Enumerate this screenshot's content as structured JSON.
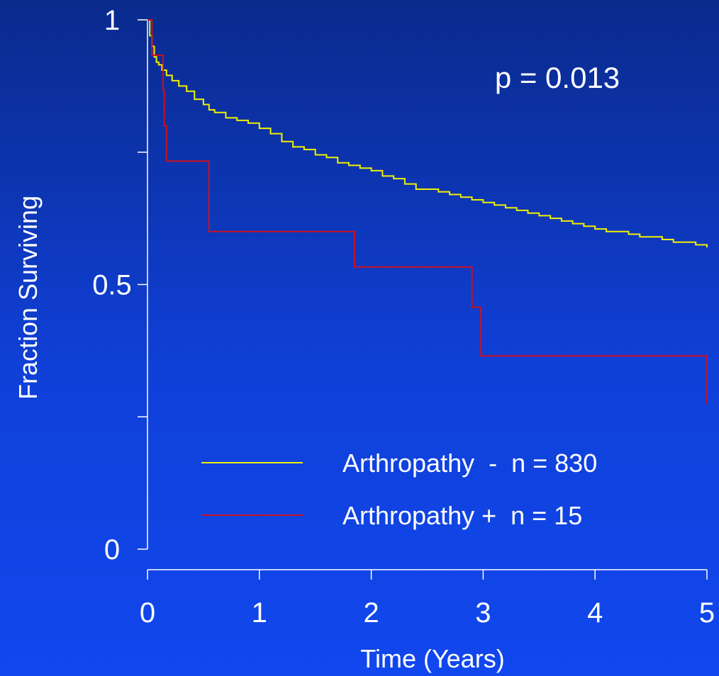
{
  "chart_data": {
    "type": "line",
    "subtype": "kaplan-meier-step",
    "xlabel": "Time (Years)",
    "ylabel": "Fraction Surviving",
    "xlim": [
      0,
      5
    ],
    "ylim": [
      0,
      1
    ],
    "x_ticks": [
      0,
      1,
      2,
      3,
      4,
      5
    ],
    "y_ticks": [
      0,
      0.25,
      0.5,
      0.75,
      1
    ],
    "y_tick_labels": [
      "0",
      "",
      "0.5",
      "",
      "1"
    ],
    "annotation": "p = 0.013",
    "grid": false,
    "legend_position": "bottom-center",
    "series": [
      {
        "name": "Arthropathy  -  n = 830",
        "color": "#f0f000",
        "x": [
          0,
          0.02,
          0.04,
          0.06,
          0.08,
          0.1,
          0.13,
          0.17,
          0.22,
          0.28,
          0.35,
          0.42,
          0.5,
          0.55,
          0.6,
          0.7,
          0.8,
          0.9,
          1.0,
          1.1,
          1.2,
          1.3,
          1.4,
          1.5,
          1.6,
          1.7,
          1.8,
          1.9,
          2.0,
          2.1,
          2.2,
          2.3,
          2.4,
          2.5,
          2.6,
          2.7,
          2.8,
          2.9,
          3.0,
          3.1,
          3.2,
          3.3,
          3.4,
          3.5,
          3.6,
          3.7,
          3.8,
          3.9,
          4.0,
          4.1,
          4.2,
          4.3,
          4.4,
          4.5,
          4.6,
          4.7,
          4.8,
          4.9,
          5.0
        ],
        "y": [
          1.0,
          0.97,
          0.95,
          0.93,
          0.92,
          0.915,
          0.905,
          0.895,
          0.885,
          0.875,
          0.865,
          0.85,
          0.84,
          0.83,
          0.825,
          0.815,
          0.81,
          0.805,
          0.795,
          0.785,
          0.77,
          0.76,
          0.755,
          0.745,
          0.74,
          0.73,
          0.725,
          0.72,
          0.715,
          0.705,
          0.7,
          0.69,
          0.68,
          0.68,
          0.675,
          0.67,
          0.665,
          0.66,
          0.655,
          0.65,
          0.645,
          0.64,
          0.635,
          0.63,
          0.625,
          0.62,
          0.615,
          0.61,
          0.605,
          0.6,
          0.6,
          0.595,
          0.59,
          0.59,
          0.585,
          0.58,
          0.58,
          0.575,
          0.57
        ]
      },
      {
        "name": "Arthropathy +  n = 15",
        "color": "#cc1020",
        "x": [
          0,
          0.04,
          0.14,
          0.15,
          0.17,
          0.55,
          1.85,
          2.9,
          2.98,
          5.0
        ],
        "y": [
          1.0,
          0.933,
          0.867,
          0.8,
          0.733,
          0.6,
          0.533,
          0.457,
          0.365,
          0.274
        ]
      }
    ]
  }
}
